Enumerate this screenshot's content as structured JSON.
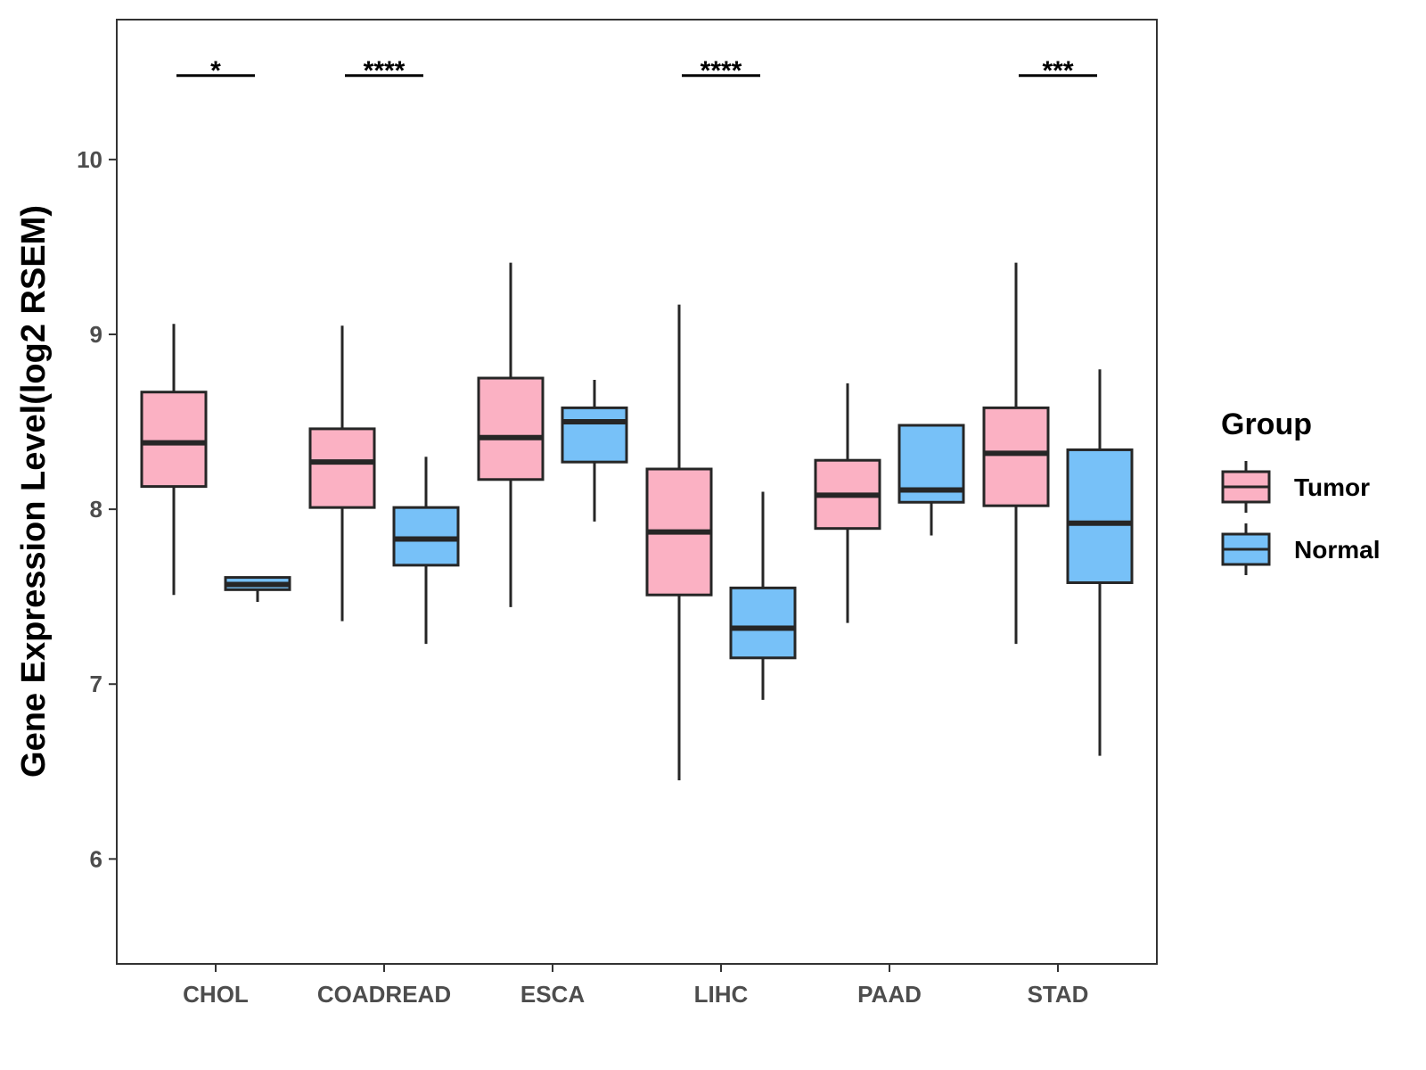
{
  "chart_data": {
    "type": "boxplot",
    "title": "",
    "xlabel": "",
    "ylabel": "Gene Expression Level(log2 RSEM)",
    "ylim": [
      5.4,
      10.8
    ],
    "yticks": [
      6,
      7,
      8,
      9,
      10
    ],
    "grid": false,
    "legend": {
      "title": "Group",
      "position": "right",
      "entries": [
        {
          "name": "Tumor",
          "color": "#FBB1C3"
        },
        {
          "name": "Normal",
          "color": "#77C1F8"
        }
      ]
    },
    "categories": [
      "CHOL",
      "COADREAD",
      "ESCA",
      "LIHC",
      "PAAD",
      "STAD"
    ],
    "significance": [
      "*",
      "****",
      "",
      "****",
      "",
      "***"
    ],
    "sig_y": 10.48,
    "series": [
      {
        "name": "Tumor",
        "color": "#FBB1C3",
        "boxes": [
          {
            "whisker_low": 7.51,
            "q1": 8.13,
            "median": 8.38,
            "q3": 8.67,
            "whisker_high": 9.06
          },
          {
            "whisker_low": 7.36,
            "q1": 8.01,
            "median": 8.27,
            "q3": 8.46,
            "whisker_high": 9.05
          },
          {
            "whisker_low": 7.44,
            "q1": 8.17,
            "median": 8.41,
            "q3": 8.75,
            "whisker_high": 9.41
          },
          {
            "whisker_low": 6.45,
            "q1": 7.51,
            "median": 7.87,
            "q3": 8.23,
            "whisker_high": 9.17
          },
          {
            "whisker_low": 7.35,
            "q1": 7.89,
            "median": 8.08,
            "q3": 8.28,
            "whisker_high": 8.72
          },
          {
            "whisker_low": 7.23,
            "q1": 8.02,
            "median": 8.32,
            "q3": 8.58,
            "whisker_high": 9.41
          }
        ]
      },
      {
        "name": "Normal",
        "color": "#77C1F8",
        "boxes": [
          {
            "whisker_low": 7.47,
            "q1": 7.54,
            "median": 7.57,
            "q3": 7.61,
            "whisker_high": 7.61
          },
          {
            "whisker_low": 7.23,
            "q1": 7.68,
            "median": 7.83,
            "q3": 8.01,
            "whisker_high": 8.3
          },
          {
            "whisker_low": 7.93,
            "q1": 8.27,
            "median": 8.5,
            "q3": 8.58,
            "whisker_high": 8.74
          },
          {
            "whisker_low": 6.91,
            "q1": 7.15,
            "median": 7.32,
            "q3": 7.55,
            "whisker_high": 8.1
          },
          {
            "whisker_low": 7.85,
            "q1": 8.04,
            "median": 8.11,
            "q3": 8.48,
            "whisker_high": 8.48
          },
          {
            "whisker_low": 6.59,
            "q1": 7.58,
            "median": 7.92,
            "q3": 8.34,
            "whisker_high": 8.8
          }
        ]
      }
    ]
  }
}
